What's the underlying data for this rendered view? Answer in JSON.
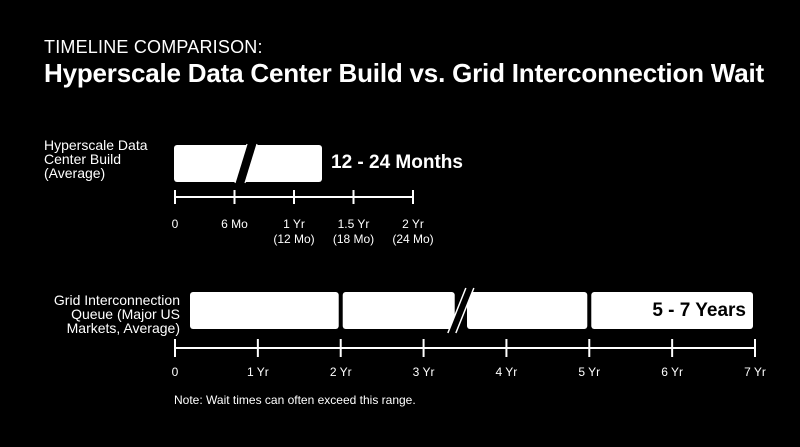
{
  "header": {
    "eyebrow": "TIMELINE COMPARISON:",
    "title": "Hyperscale Data Center Build vs. Grid Interconnection Wait"
  },
  "note": "Note: Wait times can often exceed this range.",
  "colors": {
    "background": "#000000",
    "bar": "#ffffff",
    "text": "#ffffff",
    "bar_text": "#000000"
  },
  "chart_data": [
    {
      "type": "bar",
      "orientation": "horizontal",
      "category_label": "Hyperscale Data Center Build (Average)",
      "category_label_lines": [
        "Hyperscale Data",
        "Center Build",
        "(Average)"
      ],
      "range": [
        12,
        24
      ],
      "range_label": "12 - 24 Months",
      "axis_unit": "months",
      "xlim": [
        0,
        24
      ],
      "bar_extent": [
        0,
        24
      ],
      "axis_break": true,
      "ticks": [
        {
          "value": 0,
          "label": "0",
          "sublabel": ""
        },
        {
          "value": 6,
          "label": "6 Mo",
          "sublabel": ""
        },
        {
          "value": 12,
          "label": "1 Yr",
          "sublabel": "(12 Mo)"
        },
        {
          "value": 18,
          "label": "1.5 Yr",
          "sublabel": "(18 Mo)"
        },
        {
          "value": 24,
          "label": "2 Yr",
          "sublabel": "(24 Mo)"
        }
      ]
    },
    {
      "type": "bar",
      "orientation": "horizontal",
      "category_label": "Grid Interconnection Queue (Major US Markets, Average)",
      "category_label_lines": [
        "Grid Interconnection",
        "Queue (Major US",
        "Markets, Average)"
      ],
      "range": [
        5,
        7
      ],
      "range_label": "5 - 7 Years",
      "axis_unit": "years",
      "xlim": [
        0,
        7
      ],
      "bar_extent": [
        0,
        7
      ],
      "bar_segments": [
        [
          0,
          2
        ],
        [
          2,
          3.4
        ],
        [
          3.5,
          5
        ],
        [
          5,
          7
        ]
      ],
      "axis_break_at": 3.45,
      "ticks": [
        {
          "value": 0,
          "label": "0"
        },
        {
          "value": 1,
          "label": "1 Yr"
        },
        {
          "value": 2,
          "label": "2 Yr"
        },
        {
          "value": 3,
          "label": "3 Yr"
        },
        {
          "value": 4,
          "label": "4 Yr"
        },
        {
          "value": 5,
          "label": "5 Yr"
        },
        {
          "value": 6,
          "label": "6 Yr"
        },
        {
          "value": 7,
          "label": "7 Yr"
        }
      ]
    }
  ]
}
